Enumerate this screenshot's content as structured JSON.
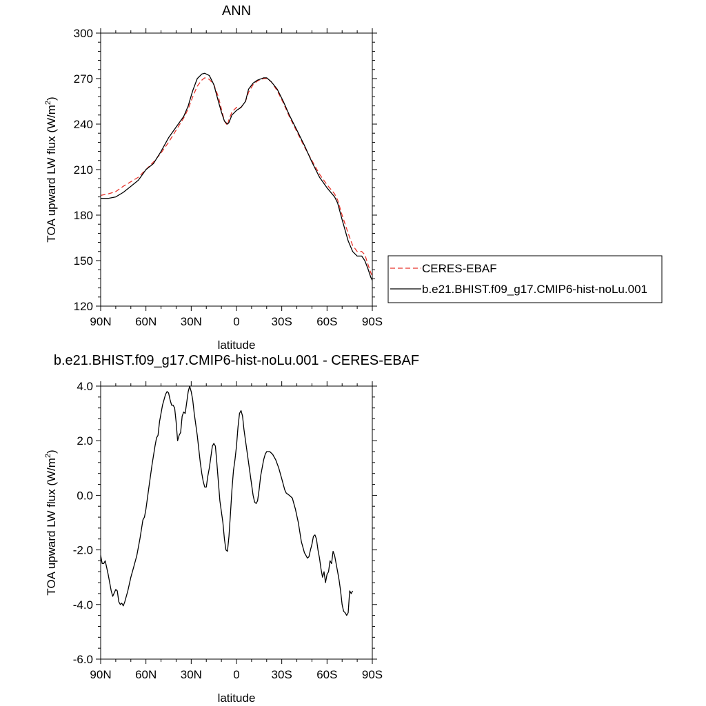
{
  "chart_data": [
    {
      "type": "line",
      "title": "ANN",
      "xlabel": "latitude",
      "ylabel": "TOA upward LW flux (W/m",
      "ylabel_sup": "2",
      "ylabel_close": ")",
      "xlim": [
        90,
        -90
      ],
      "ylim": [
        120,
        300
      ],
      "xticks": [
        90,
        60,
        30,
        0,
        -30,
        -60,
        -90
      ],
      "xtick_labels": [
        "90N",
        "60N",
        "30N",
        "0",
        "30S",
        "60S",
        "90S"
      ],
      "yticks": [
        120,
        150,
        180,
        210,
        240,
        270,
        300
      ],
      "ytick_labels": [
        "120",
        "150",
        "180",
        "210",
        "240",
        "270",
        "300"
      ],
      "legend": "right, outside plot",
      "series": [
        {
          "name": "CERES-EBAF",
          "color": "#e8342c",
          "dash": "dashed",
          "points": [
            [
              90,
              193
            ],
            [
              85,
              194
            ],
            [
              80,
              195.5
            ],
            [
              75,
              199
            ],
            [
              70,
              202
            ],
            [
              65,
              205
            ],
            [
              60,
              210
            ],
            [
              55,
              215
            ],
            [
              50,
              221
            ],
            [
              45,
              228
            ],
            [
              40,
              236
            ],
            [
              35,
              244
            ],
            [
              32,
              250
            ],
            [
              29,
              258
            ],
            [
              26,
              265
            ],
            [
              23,
              269
            ],
            [
              21,
              270.5
            ],
            [
              18,
              269.5
            ],
            [
              15,
              266
            ],
            [
              12,
              258
            ],
            [
              10,
              250
            ],
            [
              8,
              242
            ],
            [
              6,
              239
            ],
            [
              5,
              243
            ],
            [
              3,
              248
            ],
            [
              0,
              251
            ],
            [
              -3,
              251
            ],
            [
              -6,
              255
            ],
            [
              -8,
              261
            ],
            [
              -11,
              266
            ],
            [
              -14,
              268.5
            ],
            [
              -18,
              270
            ],
            [
              -20,
              270
            ],
            [
              -23,
              268
            ],
            [
              -27,
              262
            ],
            [
              -31,
              254
            ],
            [
              -35,
              245
            ],
            [
              -40,
              235
            ],
            [
              -45,
              225
            ],
            [
              -50,
              216
            ],
            [
              -55,
              207
            ],
            [
              -60,
              200
            ],
            [
              -65,
              194
            ],
            [
              -67,
              190
            ],
            [
              -70,
              180
            ],
            [
              -74,
              168
            ],
            [
              -77,
              160
            ],
            [
              -80,
              156
            ],
            [
              -83,
              156
            ],
            [
              -85,
              154
            ],
            [
              -87,
              148
            ],
            [
              -89,
              142
            ],
            [
              -90,
              140
            ]
          ]
        },
        {
          "name": "b.e21.BHIST.f09_g17.CMIP6-hist-noLu.001",
          "color": "#000000",
          "dash": "solid",
          "points": [
            [
              90,
              191
            ],
            [
              85,
              191
            ],
            [
              80,
              192
            ],
            [
              75,
              195
            ],
            [
              70,
              199
            ],
            [
              65,
              203
            ],
            [
              60,
              210
            ],
            [
              55,
              214
            ],
            [
              50,
              222
            ],
            [
              45,
              231
            ],
            [
              40,
              238
            ],
            [
              35,
              245
            ],
            [
              32,
              252
            ],
            [
              29,
              262
            ],
            [
              26,
              270
            ],
            [
              23,
              273
            ],
            [
              21,
              273.5
            ],
            [
              18,
              272
            ],
            [
              15,
              266
            ],
            [
              12,
              255
            ],
            [
              10,
              248
            ],
            [
              8,
              242
            ],
            [
              6,
              240
            ],
            [
              5,
              241
            ],
            [
              3,
              246
            ],
            [
              0,
              249
            ],
            [
              -3,
              251
            ],
            [
              -6,
              255
            ],
            [
              -8,
              263
            ],
            [
              -11,
              267
            ],
            [
              -14,
              269
            ],
            [
              -18,
              270.5
            ],
            [
              -20,
              270.5
            ],
            [
              -23,
              268
            ],
            [
              -27,
              263
            ],
            [
              -31,
              255
            ],
            [
              -35,
              246
            ],
            [
              -40,
              236
            ],
            [
              -45,
              226
            ],
            [
              -50,
              215
            ],
            [
              -55,
              205
            ],
            [
              -60,
              198
            ],
            [
              -65,
              192
            ],
            [
              -67,
              188
            ],
            [
              -70,
              177
            ],
            [
              -74,
              163
            ],
            [
              -77,
              156
            ],
            [
              -80,
              153
            ],
            [
              -83,
              153
            ],
            [
              -85,
              150
            ],
            [
              -87,
              145
            ],
            [
              -89,
              139
            ],
            [
              -90,
              137
            ]
          ]
        }
      ]
    },
    {
      "type": "line",
      "title": "b.e21.BHIST.f09_g17.CMIP6-hist-noLu.001 - CERES-EBAF",
      "xlabel": "latitude",
      "ylabel": "TOA upward LW flux (W/m",
      "ylabel_sup": "2",
      "ylabel_close": ")",
      "xlim": [
        90,
        -90
      ],
      "ylim": [
        -6.0,
        4.0
      ],
      "xticks": [
        90,
        60,
        30,
        0,
        -30,
        -60,
        -90
      ],
      "xtick_labels": [
        "90N",
        "60N",
        "30N",
        "0",
        "30S",
        "60S",
        "90S"
      ],
      "yticks": [
        -6,
        -4,
        -2,
        0,
        2,
        4
      ],
      "ytick_labels": [
        "-6.0",
        "-4.0",
        "-2.0",
        "0.0",
        "2.0",
        "4.0"
      ],
      "series": [
        {
          "color": "#000000",
          "dash": "solid",
          "points": [
            [
              90,
              -2.2
            ],
            [
              89,
              -2.5
            ],
            [
              88,
              -2.5
            ],
            [
              87,
              -2.4
            ],
            [
              85,
              -2.9
            ],
            [
              83,
              -3.5
            ],
            [
              82,
              -3.7
            ],
            [
              80,
              -3.45
            ],
            [
              79,
              -3.5
            ],
            [
              78,
              -3.9
            ],
            [
              77,
              -4.0
            ],
            [
              76,
              -3.95
            ],
            [
              75,
              -4.05
            ],
            [
              74,
              -3.9
            ],
            [
              72,
              -3.5
            ],
            [
              70,
              -3.0
            ],
            [
              68,
              -2.6
            ],
            [
              66,
              -2.2
            ],
            [
              64,
              -1.6
            ],
            [
              62,
              -0.9
            ],
            [
              61,
              -0.8
            ],
            [
              60,
              -0.5
            ],
            [
              58,
              0.3
            ],
            [
              56,
              1.1
            ],
            [
              54,
              1.8
            ],
            [
              53,
              2.1
            ],
            [
              52,
              2.2
            ],
            [
              51,
              2.7
            ],
            [
              49,
              3.3
            ],
            [
              47,
              3.7
            ],
            [
              46,
              3.8
            ],
            [
              45,
              3.75
            ],
            [
              44,
              3.5
            ],
            [
              43,
              3.3
            ],
            [
              42,
              3.3
            ],
            [
              41,
              3.2
            ],
            [
              40,
              2.7
            ],
            [
              39,
              2.0
            ],
            [
              38,
              2.2
            ],
            [
              37,
              2.3
            ],
            [
              36,
              2.9
            ],
            [
              35,
              3.05
            ],
            [
              34,
              3.0
            ],
            [
              33,
              3.4
            ],
            [
              32,
              3.8
            ],
            [
              31,
              4.0
            ],
            [
              30,
              3.8
            ],
            [
              29,
              3.5
            ],
            [
              28,
              3.0
            ],
            [
              26,
              2.2
            ],
            [
              24,
              1.2
            ],
            [
              23,
              0.8
            ],
            [
              22,
              0.5
            ],
            [
              21,
              0.3
            ],
            [
              20,
              0.3
            ],
            [
              19,
              0.7
            ],
            [
              18,
              1.0
            ],
            [
              17,
              1.4
            ],
            [
              16,
              1.8
            ],
            [
              15,
              1.9
            ],
            [
              14,
              1.8
            ],
            [
              13,
              1.2
            ],
            [
              12,
              0.5
            ],
            [
              11,
              -0.2
            ],
            [
              10,
              -0.6
            ],
            [
              9,
              -1.0
            ],
            [
              8,
              -1.6
            ],
            [
              7,
              -2.0
            ],
            [
              6,
              -2.05
            ],
            [
              5,
              -1.5
            ],
            [
              4,
              -0.7
            ],
            [
              3,
              0.2
            ],
            [
              2,
              0.9
            ],
            [
              1,
              1.3
            ],
            [
              0,
              1.8
            ],
            [
              -1,
              2.5
            ],
            [
              -2,
              3.0
            ],
            [
              -3,
              3.1
            ],
            [
              -4,
              2.9
            ],
            [
              -5,
              2.4
            ],
            [
              -6,
              2.0
            ],
            [
              -8,
              1.2
            ],
            [
              -10,
              0.4
            ],
            [
              -11,
              0.0
            ],
            [
              -12,
              -0.25
            ],
            [
              -13,
              -0.3
            ],
            [
              -14,
              -0.2
            ],
            [
              -15,
              0.2
            ],
            [
              -16,
              0.7
            ],
            [
              -17,
              1.0
            ],
            [
              -18,
              1.3
            ],
            [
              -19,
              1.5
            ],
            [
              -20,
              1.6
            ],
            [
              -22,
              1.6
            ],
            [
              -24,
              1.5
            ],
            [
              -26,
              1.3
            ],
            [
              -28,
              1.0
            ],
            [
              -30,
              0.6
            ],
            [
              -32,
              0.2
            ],
            [
              -33,
              0.08
            ],
            [
              -35,
              0.0
            ],
            [
              -37,
              -0.1
            ],
            [
              -39,
              -0.5
            ],
            [
              -41,
              -1.0
            ],
            [
              -43,
              -1.7
            ],
            [
              -44,
              -1.9
            ],
            [
              -45,
              -2.1
            ],
            [
              -46,
              -2.2
            ],
            [
              -47,
              -2.3
            ],
            [
              -48,
              -2.25
            ],
            [
              -49,
              -2.0
            ],
            [
              -50,
              -1.8
            ],
            [
              -51,
              -1.5
            ],
            [
              -52,
              -1.45
            ],
            [
              -53,
              -1.6
            ],
            [
              -54,
              -2.0
            ],
            [
              -55,
              -2.3
            ],
            [
              -56,
              -2.7
            ],
            [
              -57,
              -3.0
            ],
            [
              -58,
              -2.8
            ],
            [
              -59,
              -3.2
            ],
            [
              -60,
              -2.9
            ],
            [
              -61,
              -2.8
            ],
            [
              -62,
              -2.4
            ],
            [
              -63,
              -2.5
            ],
            [
              -64,
              -2.05
            ],
            [
              -65,
              -2.2
            ],
            [
              -66,
              -2.5
            ],
            [
              -67,
              -2.8
            ],
            [
              -68,
              -3.1
            ],
            [
              -69,
              -3.5
            ],
            [
              -70,
              -4.0
            ],
            [
              -71,
              -4.25
            ],
            [
              -72,
              -4.3
            ],
            [
              -73,
              -4.4
            ],
            [
              -74,
              -4.3
            ],
            [
              -75,
              -3.5
            ],
            [
              -76,
              -3.6
            ],
            [
              -77,
              -3.5
            ]
          ]
        }
      ]
    }
  ]
}
